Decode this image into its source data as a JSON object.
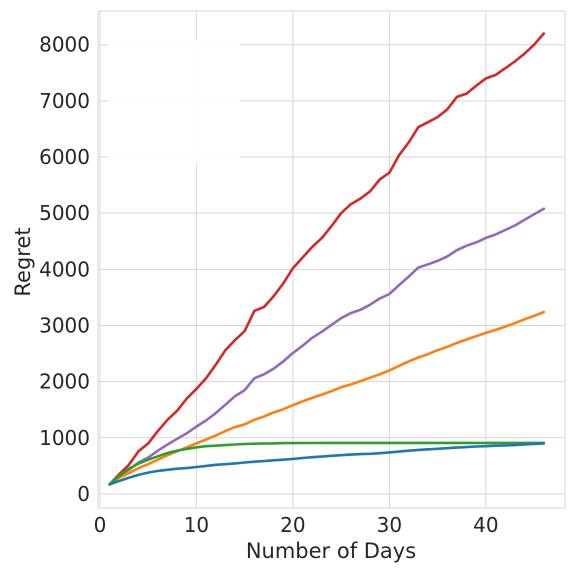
{
  "chart_data": {
    "type": "line",
    "title": "",
    "xlabel": "Number of Days",
    "ylabel": "Regret",
    "xlim": [
      -0.2,
      48.2
    ],
    "ylim": [
      -250,
      8600
    ],
    "xticks": [
      0,
      10,
      20,
      30,
      40
    ],
    "yticks": [
      0,
      1000,
      2000,
      3000,
      4000,
      5000,
      6000,
      7000,
      8000
    ],
    "grid": true,
    "legend": "top-left (blank)",
    "series": [
      {
        "color": "#d62728",
        "x": [
          1,
          2,
          3,
          4,
          5,
          6,
          7,
          8,
          9,
          10,
          11,
          12,
          13,
          14,
          15,
          16,
          17,
          18,
          19,
          20,
          21,
          22,
          23,
          24,
          25,
          26,
          27,
          28,
          29,
          30,
          31,
          32,
          33,
          34,
          35,
          36,
          37,
          38,
          39,
          40,
          41,
          42,
          43,
          44,
          45,
          46
        ],
        "values": [
          170,
          350,
          520,
          760,
          900,
          1120,
          1320,
          1480,
          1700,
          1870,
          2060,
          2300,
          2560,
          2740,
          2900,
          3260,
          3330,
          3520,
          3750,
          4020,
          4210,
          4400,
          4560,
          4770,
          5000,
          5160,
          5260,
          5390,
          5600,
          5720,
          6030,
          6260,
          6530,
          6620,
          6710,
          6850,
          7070,
          7130,
          7270,
          7400,
          7460,
          7580,
          7700,
          7840,
          8000,
          8200
        ]
      },
      {
        "color": "#9467bd",
        "x": [
          1,
          2,
          3,
          4,
          5,
          6,
          7,
          8,
          9,
          10,
          11,
          12,
          13,
          14,
          15,
          16,
          17,
          18,
          19,
          20,
          21,
          22,
          23,
          24,
          25,
          26,
          27,
          28,
          29,
          30,
          31,
          32,
          33,
          34,
          35,
          36,
          37,
          38,
          39,
          40,
          41,
          42,
          43,
          44,
          45,
          46
        ],
        "values": [
          170,
          320,
          430,
          560,
          650,
          770,
          880,
          980,
          1080,
          1200,
          1310,
          1440,
          1590,
          1740,
          1850,
          2060,
          2130,
          2230,
          2360,
          2510,
          2640,
          2780,
          2890,
          3010,
          3130,
          3220,
          3280,
          3370,
          3480,
          3560,
          3720,
          3870,
          4030,
          4090,
          4150,
          4230,
          4340,
          4420,
          4480,
          4560,
          4620,
          4700,
          4780,
          4880,
          4980,
          5080
        ]
      },
      {
        "color": "#ff7f0e",
        "x": [
          1,
          2,
          3,
          4,
          5,
          6,
          7,
          8,
          9,
          10,
          11,
          12,
          13,
          14,
          15,
          16,
          17,
          18,
          19,
          20,
          21,
          22,
          23,
          24,
          25,
          26,
          27,
          28,
          29,
          30,
          31,
          32,
          33,
          34,
          35,
          36,
          37,
          38,
          39,
          40,
          41,
          42,
          43,
          44,
          45,
          46
        ],
        "values": [
          170,
          290,
          370,
          460,
          530,
          610,
          690,
          760,
          830,
          900,
          970,
          1040,
          1120,
          1190,
          1240,
          1320,
          1380,
          1450,
          1510,
          1580,
          1650,
          1710,
          1770,
          1830,
          1900,
          1950,
          2010,
          2070,
          2130,
          2200,
          2280,
          2360,
          2430,
          2490,
          2560,
          2620,
          2690,
          2750,
          2810,
          2870,
          2920,
          2980,
          3040,
          3110,
          3170,
          3240
        ]
      },
      {
        "color": "#2ca02c",
        "x": [
          1,
          2,
          3,
          4,
          5,
          6,
          7,
          8,
          9,
          10,
          11,
          12,
          13,
          14,
          15,
          16,
          17,
          18,
          19,
          20,
          21,
          22,
          23,
          24,
          25,
          26,
          27,
          28,
          29,
          30,
          31,
          32,
          33,
          34,
          35,
          36,
          37,
          38,
          39,
          40,
          41,
          42,
          43,
          44,
          45,
          46
        ],
        "values": [
          170,
          320,
          450,
          540,
          610,
          670,
          730,
          770,
          800,
          830,
          850,
          860,
          870,
          880,
          890,
          895,
          898,
          900,
          905,
          905,
          908,
          908,
          910,
          910,
          910,
          910,
          910,
          910,
          910,
          910,
          910,
          910,
          910,
          910,
          910,
          910,
          910,
          910,
          910,
          910,
          910,
          910,
          910,
          910,
          910,
          910
        ]
      },
      {
        "color": "#1f77b4",
        "x": [
          1,
          2,
          3,
          4,
          5,
          6,
          7,
          8,
          9,
          10,
          11,
          12,
          13,
          14,
          15,
          16,
          17,
          18,
          19,
          20,
          21,
          22,
          23,
          24,
          25,
          26,
          27,
          28,
          29,
          30,
          31,
          32,
          33,
          34,
          35,
          36,
          37,
          38,
          39,
          40,
          41,
          42,
          43,
          44,
          45,
          46
        ],
        "values": [
          170,
          230,
          290,
          340,
          380,
          410,
          430,
          450,
          460,
          480,
          500,
          520,
          530,
          545,
          560,
          575,
          585,
          600,
          610,
          625,
          640,
          655,
          665,
          680,
          690,
          700,
          710,
          715,
          725,
          740,
          755,
          770,
          785,
          795,
          805,
          815,
          825,
          835,
          845,
          850,
          860,
          865,
          870,
          880,
          890,
          900
        ]
      }
    ]
  }
}
